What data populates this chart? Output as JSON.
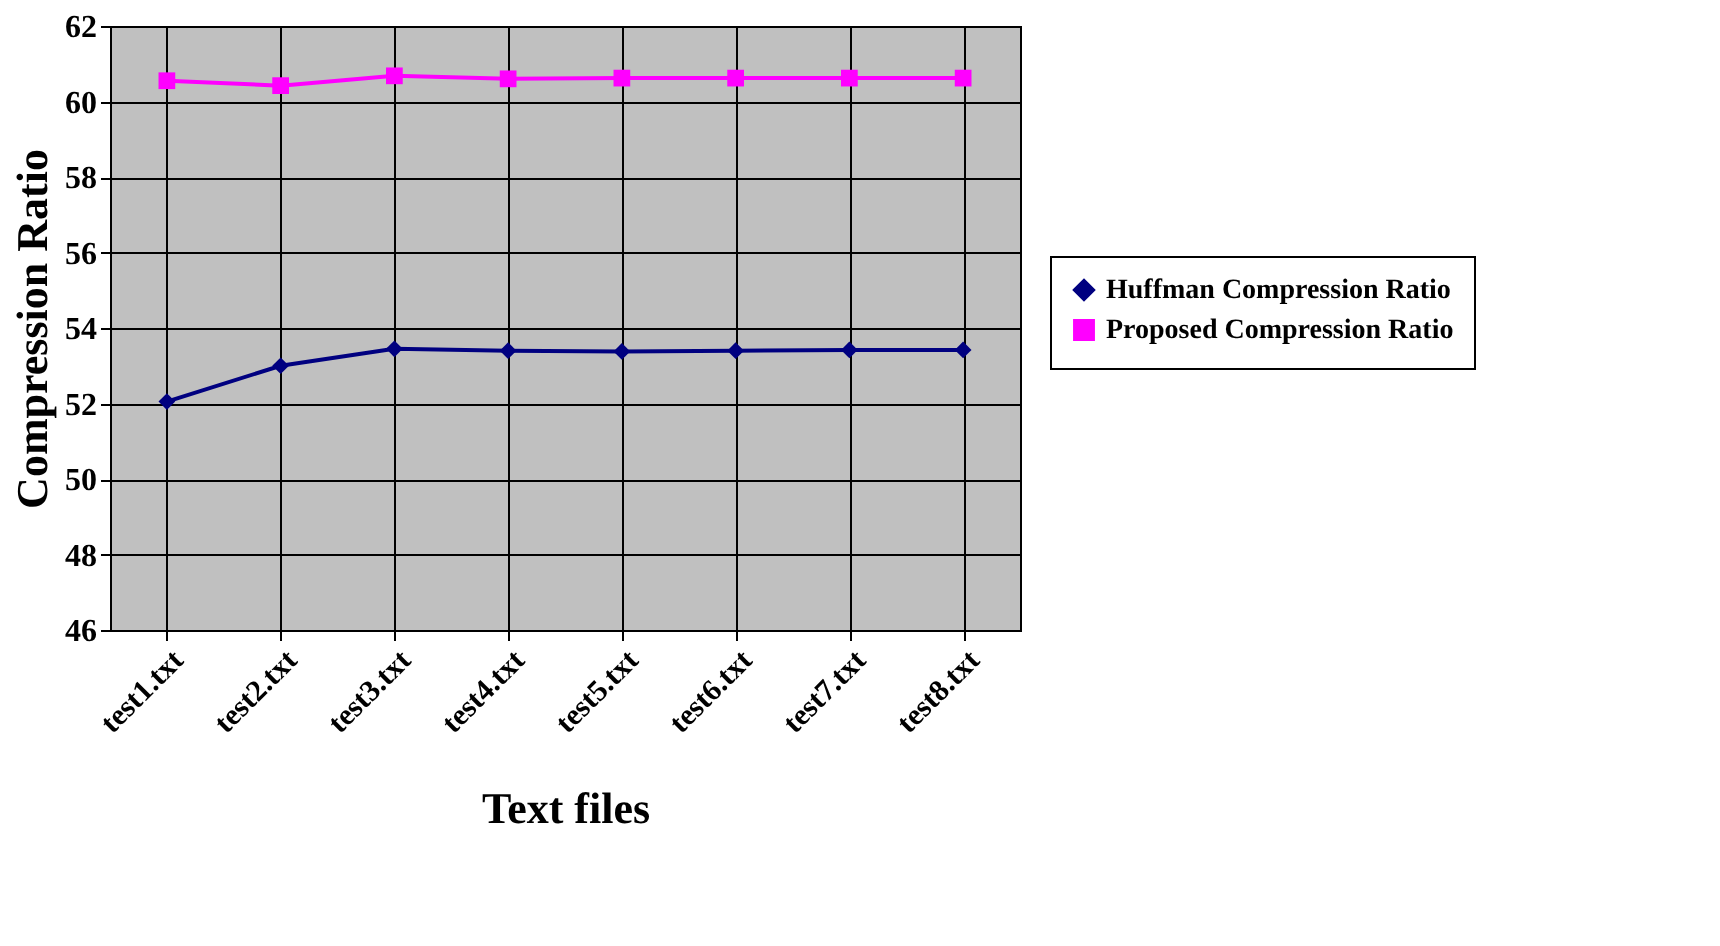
{
  "chart_data": {
    "type": "line",
    "xlabel": "Text files",
    "ylabel": "Compression Ratio",
    "categories": [
      "test1.txt",
      "test2.txt",
      "test3.txt",
      "test4.txt",
      "test5.txt",
      "test6.txt",
      "test7.txt",
      "test8.txt"
    ],
    "series": [
      {
        "name": "Huffman Compression Ratio",
        "color": "#000080",
        "marker": "diamond",
        "values": [
          52.05,
          53.0,
          53.45,
          53.4,
          53.38,
          53.4,
          53.42,
          53.42
        ]
      },
      {
        "name": "Proposed Compression Ratio",
        "color": "#ff00ff",
        "marker": "square",
        "values": [
          60.55,
          60.42,
          60.68,
          60.6,
          60.62,
          60.62,
          60.62,
          60.62
        ]
      }
    ],
    "ylim": [
      46,
      62
    ],
    "yticks": [
      46,
      48,
      50,
      52,
      54,
      56,
      58,
      60,
      62
    ],
    "grid": true,
    "legend": "right",
    "line_style": "solid"
  }
}
